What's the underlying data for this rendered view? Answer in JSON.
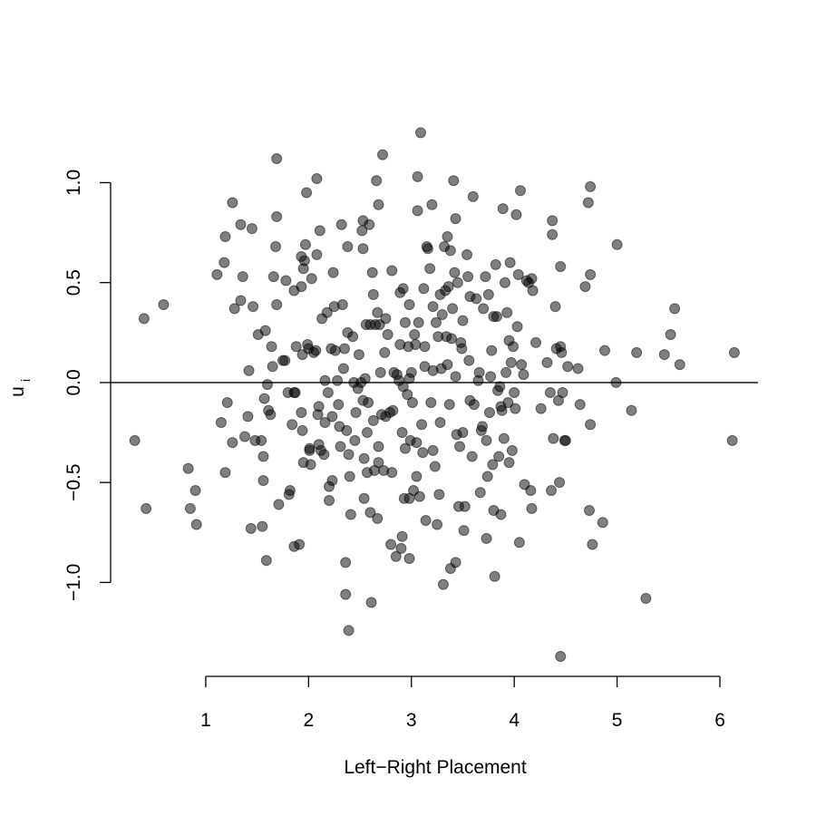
{
  "chart_data": {
    "type": "scatter",
    "xlabel": "Left−Right Placement",
    "ylabel": "u",
    "ylabel_sub": "i",
    "xlim": [
      0.075,
      6.37
    ],
    "ylim": [
      -1.42,
      1.34
    ],
    "xticks": [
      1,
      2,
      3,
      4,
      5,
      6
    ],
    "yticks": [
      {
        "value": -1,
        "label": "−1.0"
      },
      {
        "value": -0.5,
        "label": "−0.5"
      },
      {
        "value": 0,
        "label": "0.0"
      },
      {
        "value": 0.5,
        "label": "0.5"
      },
      {
        "value": 1,
        "label": "1.0"
      }
    ],
    "hline": 0,
    "color": "#000000",
    "alpha": 0.5,
    "x": [
      0.31,
      0.4,
      0.42,
      0.59,
      0.83,
      0.85,
      0.9,
      0.91,
      1.11,
      1.15,
      1.18,
      1.19,
      1.19,
      1.21,
      1.26,
      1.26,
      1.28,
      1.34,
      1.34,
      1.36,
      1.38,
      1.41,
      1.42,
      1.44,
      1.45,
      1.46,
      1.48,
      1.51,
      1.54,
      1.55,
      1.56,
      1.56,
      1.57,
      1.58,
      1.59,
      1.6,
      1.61,
      1.63,
      1.64,
      1.65,
      1.66,
      1.68,
      1.69,
      1.69,
      1.69,
      1.71,
      1.75,
      1.77,
      1.78,
      1.8,
      1.81,
      1.82,
      1.84,
      1.86,
      1.86,
      1.86,
      1.87,
      1.88,
      1.91,
      1.93,
      1.93,
      1.93,
      1.94,
      1.94,
      1.95,
      1.95,
      1.96,
      1.97,
      1.98,
      1.99,
      2.0,
      2.01,
      2.01,
      2.02,
      2.03,
      2.05,
      2.07,
      2.08,
      2.08,
      2.09,
      2.1,
      2.1,
      2.11,
      2.12,
      2.13,
      2.15,
      2.16,
      2.16,
      2.18,
      2.19,
      2.2,
      2.2,
      2.22,
      2.23,
      2.23,
      2.24,
      2.25,
      2.26,
      2.28,
      2.29,
      2.3,
      2.31,
      2.32,
      2.33,
      2.34,
      2.35,
      2.36,
      2.36,
      2.37,
      2.38,
      2.38,
      2.39,
      2.39,
      2.4,
      2.41,
      2.43,
      2.44,
      2.45,
      2.46,
      2.48,
      2.49,
      2.51,
      2.52,
      2.53,
      2.53,
      2.53,
      2.54,
      2.54,
      2.55,
      2.56,
      2.57,
      2.57,
      2.58,
      2.59,
      2.6,
      2.6,
      2.61,
      2.62,
      2.63,
      2.63,
      2.64,
      2.65,
      2.66,
      2.67,
      2.67,
      2.68,
      2.68,
      2.68,
      2.69,
      2.7,
      2.71,
      2.72,
      2.73,
      2.74,
      2.75,
      2.75,
      2.77,
      2.79,
      2.8,
      2.81,
      2.81,
      2.82,
      2.83,
      2.85,
      2.86,
      2.88,
      2.89,
      2.89,
      2.9,
      2.91,
      2.91,
      2.92,
      2.92,
      2.93,
      2.94,
      2.94,
      2.96,
      2.97,
      2.98,
      2.98,
      2.98,
      2.98,
      2.99,
      3.0,
      3.01,
      3.02,
      3.03,
      3.04,
      3.05,
      3.05,
      3.06,
      3.06,
      3.07,
      3.08,
      3.09,
      3.1,
      3.11,
      3.12,
      3.13,
      3.13,
      3.14,
      3.15,
      3.16,
      3.18,
      3.19,
      3.2,
      3.21,
      3.21,
      3.21,
      3.23,
      3.24,
      3.25,
      3.26,
      3.27,
      3.28,
      3.28,
      3.29,
      3.3,
      3.31,
      3.32,
      3.33,
      3.34,
      3.35,
      3.35,
      3.36,
      3.37,
      3.38,
      3.38,
      3.39,
      3.4,
      3.41,
      3.42,
      3.43,
      3.43,
      3.43,
      3.44,
      3.45,
      3.46,
      3.47,
      3.48,
      3.49,
      3.5,
      3.5,
      3.51,
      3.52,
      3.54,
      3.55,
      3.56,
      3.57,
      3.57,
      3.59,
      3.6,
      3.61,
      3.63,
      3.65,
      3.66,
      3.67,
      3.68,
      3.69,
      3.7,
      3.72,
      3.73,
      3.73,
      3.74,
      3.75,
      3.76,
      3.77,
      3.78,
      3.79,
      3.8,
      3.8,
      3.81,
      3.82,
      3.83,
      3.84,
      3.85,
      3.86,
      3.87,
      3.87,
      3.88,
      3.89,
      3.9,
      3.91,
      3.92,
      3.93,
      3.94,
      3.95,
      3.95,
      3.96,
      3.97,
      3.98,
      3.99,
      4.0,
      4.01,
      4.02,
      4.03,
      4.04,
      4.05,
      4.06,
      4.07,
      4.09,
      4.1,
      4.12,
      4.14,
      4.16,
      4.17,
      4.17,
      4.18,
      4.21,
      4.26,
      4.32,
      4.35,
      4.36,
      4.37,
      4.37,
      4.38,
      4.4,
      4.41,
      4.43,
      4.44,
      4.45,
      4.45,
      4.45,
      4.46,
      4.47,
      4.49,
      4.5,
      4.52,
      4.62,
      4.64,
      4.69,
      4.72,
      4.73,
      4.74,
      4.74,
      4.74,
      4.76,
      4.86,
      4.88,
      4.99,
      5.0,
      5.14,
      5.19,
      5.28,
      5.46,
      5.52,
      5.56,
      5.61,
      6.12,
      6.14
    ],
    "values": [
      -0.29,
      0.32,
      -0.63,
      0.39,
      -0.43,
      -0.63,
      -0.54,
      -0.71,
      0.54,
      -0.2,
      0.6,
      0.73,
      -0.45,
      -0.1,
      0.9,
      -0.3,
      0.37,
      0.79,
      0.41,
      0.53,
      -0.27,
      -0.17,
      0.06,
      -0.73,
      0.77,
      0.38,
      -0.29,
      0.24,
      -0.29,
      -0.72,
      -0.37,
      -0.49,
      -0.08,
      0.26,
      -0.89,
      -0.01,
      -0.14,
      -0.16,
      0.18,
      0.08,
      0.53,
      0.68,
      1.12,
      0.83,
      0.39,
      -0.61,
      0.11,
      0.11,
      0.51,
      -0.05,
      -0.56,
      -0.54,
      -0.21,
      0.46,
      -0.05,
      -0.82,
      -0.05,
      0.18,
      -0.81,
      0.48,
      -0.15,
      0.63,
      0.14,
      -0.24,
      -0.4,
      0.57,
      0.61,
      0.69,
      0.95,
      0.19,
      0.17,
      -0.33,
      -0.34,
      -0.41,
      0.52,
      0.15,
      0.16,
      0.64,
      1.02,
      -0.16,
      -0.12,
      -0.31,
      0.76,
      -0.34,
      0.32,
      -0.36,
      -0.2,
      0.01,
      0.35,
      -0.05,
      -0.52,
      -0.59,
      0.17,
      -0.17,
      -0.49,
      0.55,
      0.38,
      0.16,
      0.01,
      -0.11,
      -0.22,
      -0.32,
      0.79,
      0.39,
      0.07,
      0.17,
      -0.9,
      -1.06,
      -0.24,
      0.68,
      0.25,
      -0.36,
      -1.24,
      -0.47,
      -0.66,
      0.23,
      0.0,
      -0.29,
      -0.15,
      -0.03,
      0.14,
      0.0,
      0.76,
      0.67,
      0.81,
      -0.09,
      -0.38,
      -0.58,
      0.02,
      0.29,
      -0.45,
      -0.25,
      -0.1,
      0.79,
      -0.65,
      0.29,
      -1.1,
      0.55,
      -0.19,
      0.44,
      -0.44,
      0.29,
      1.01,
      0.35,
      -0.68,
      0.89,
      -0.4,
      -0.32,
      0.29,
      0.05,
      -0.16,
      1.14,
      -0.44,
      0.15,
      0.32,
      -0.17,
      0.24,
      -0.15,
      -0.81,
      -0.45,
      0.56,
      -0.14,
      0.05,
      -0.87,
      0.04,
      0.01,
      0.19,
      0.45,
      -0.83,
      -0.25,
      -0.77,
      -0.02,
      0.47,
      -0.58,
      -0.33,
      0.3,
      -0.06,
      0.18,
      -0.58,
      0.02,
      -0.88,
      0.39,
      -0.29,
      0.05,
      -0.1,
      -0.54,
      0.24,
      0.19,
      -0.3,
      -0.47,
      1.03,
      0.86,
      0.3,
      -0.57,
      1.25,
      -0.21,
      -0.35,
      0.47,
      0.08,
      0.18,
      -0.69,
      0.68,
      0.67,
      0.57,
      -0.1,
      0.89,
      -0.34,
      0.06,
      0.38,
      -0.42,
      0.3,
      -0.71,
      0.23,
      -0.56,
      0.44,
      -0.2,
      0.07,
      0.34,
      -1.01,
      0.68,
      0.46,
      0.23,
      0.73,
      0.09,
      0.48,
      -0.11,
      -0.93,
      0.66,
      0.22,
      0.37,
      1.01,
      0.55,
      0.03,
      -0.9,
      0.82,
      -0.26,
      0.5,
      -0.62,
      -0.32,
      0.2,
      0.17,
      -0.25,
      0.31,
      -0.74,
      -0.62,
      0.64,
      0.53,
      0.11,
      -0.09,
      0.43,
      -0.37,
      0.93,
      -0.11,
      0.42,
      0.01,
      0.05,
      -0.55,
      -0.24,
      -0.22,
      0.37,
      0.53,
      -0.29,
      -0.78,
      -0.47,
      0.44,
      -0.15,
      0.03,
      0.16,
      -0.41,
      -0.64,
      0.33,
      -0.97,
      0.59,
      0.33,
      -0.04,
      -0.37,
      -0.02,
      -0.12,
      -0.66,
      -0.14,
      0.87,
      -0.28,
      0.5,
      0.05,
      0.35,
      -0.1,
      0.21,
      -0.4,
      0.6,
      0.1,
      -0.34,
      0.18,
      -0.05,
      -0.13,
      0.84,
      0.28,
      0.54,
      -0.8,
      0.96,
      0.09,
      0.04,
      -0.51,
      0.51,
      0.5,
      -0.54,
      0.52,
      -0.63,
      0.46,
      0.2,
      -0.13,
      0.1,
      -0.05,
      -0.54,
      0.81,
      0.74,
      -0.28,
      0.38,
      0.17,
      -0.09,
      -0.5,
      -1.37,
      0.58,
      0.18,
      0.15,
      -0.05,
      -0.29,
      -0.29,
      0.08,
      0.07,
      -0.11,
      0.48,
      0.9,
      -0.64,
      0.98,
      0.54,
      -0.21,
      -0.81,
      -0.7,
      0.16,
      0.0,
      0.69,
      -0.14,
      0.15,
      -1.08,
      0.14,
      0.24,
      0.37,
      0.09,
      -0.29,
      0.15
    ]
  }
}
